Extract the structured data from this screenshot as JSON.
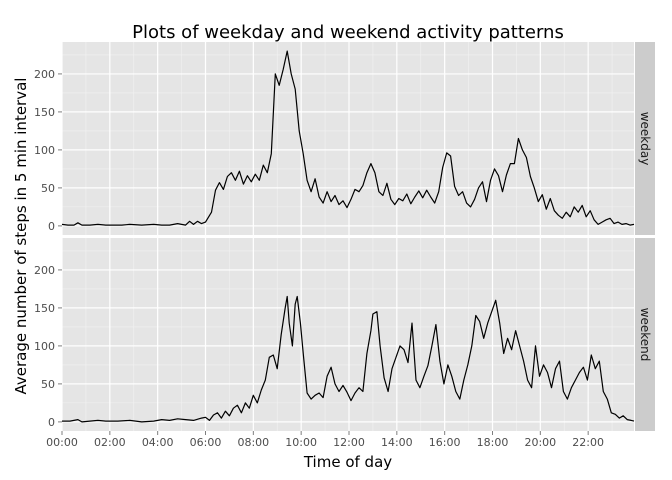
{
  "chart_data": {
    "type": "line",
    "title": "Plots of weekday and weekend activity patterns",
    "xlabel": "Time of day",
    "ylabel": "Average number of steps in 5 min interval",
    "x_unit": "minutes since midnight",
    "xlim": [
      0,
      1435
    ],
    "ylim": [
      -12,
      242
    ],
    "x_ticks": [
      0,
      120,
      240,
      360,
      480,
      600,
      720,
      840,
      960,
      1080,
      1200,
      1320
    ],
    "x_tick_labels": [
      "00:00",
      "02:00",
      "04:00",
      "06:00",
      "08:00",
      "10:00",
      "12:00",
      "14:00",
      "16:00",
      "18:00",
      "20:00",
      "22:00"
    ],
    "y_ticks": [
      0,
      50,
      100,
      150,
      200
    ],
    "y_tick_labels": [
      "0",
      "50",
      "100",
      "150",
      "200"
    ],
    "grid": true,
    "line_color": "#000000",
    "panel_background": "#e5e5e5",
    "strip_background": "#cccccc",
    "facets": [
      {
        "name": "weekday",
        "points": [
          [
            0,
            2
          ],
          [
            15,
            1
          ],
          [
            30,
            1
          ],
          [
            40,
            4
          ],
          [
            50,
            1
          ],
          [
            70,
            1
          ],
          [
            90,
            2
          ],
          [
            110,
            1
          ],
          [
            130,
            1
          ],
          [
            150,
            1
          ],
          [
            170,
            2
          ],
          [
            200,
            1
          ],
          [
            230,
            2
          ],
          [
            250,
            1
          ],
          [
            270,
            1
          ],
          [
            290,
            3
          ],
          [
            310,
            1
          ],
          [
            320,
            6
          ],
          [
            330,
            2
          ],
          [
            340,
            6
          ],
          [
            350,
            3
          ],
          [
            360,
            5
          ],
          [
            375,
            18
          ],
          [
            385,
            47
          ],
          [
            395,
            57
          ],
          [
            405,
            48
          ],
          [
            415,
            65
          ],
          [
            425,
            70
          ],
          [
            435,
            60
          ],
          [
            445,
            72
          ],
          [
            455,
            55
          ],
          [
            465,
            66
          ],
          [
            475,
            58
          ],
          [
            485,
            68
          ],
          [
            495,
            60
          ],
          [
            505,
            80
          ],
          [
            515,
            70
          ],
          [
            525,
            95
          ],
          [
            535,
            200
          ],
          [
            545,
            185
          ],
          [
            555,
            206
          ],
          [
            565,
            230
          ],
          [
            575,
            200
          ],
          [
            585,
            180
          ],
          [
            595,
            125
          ],
          [
            605,
            95
          ],
          [
            615,
            60
          ],
          [
            625,
            45
          ],
          [
            635,
            62
          ],
          [
            645,
            38
          ],
          [
            655,
            30
          ],
          [
            665,
            45
          ],
          [
            675,
            32
          ],
          [
            685,
            40
          ],
          [
            695,
            28
          ],
          [
            705,
            33
          ],
          [
            715,
            24
          ],
          [
            725,
            35
          ],
          [
            735,
            48
          ],
          [
            745,
            45
          ],
          [
            755,
            53
          ],
          [
            765,
            70
          ],
          [
            775,
            82
          ],
          [
            785,
            70
          ],
          [
            795,
            45
          ],
          [
            805,
            40
          ],
          [
            815,
            56
          ],
          [
            825,
            35
          ],
          [
            835,
            28
          ],
          [
            845,
            36
          ],
          [
            855,
            33
          ],
          [
            865,
            42
          ],
          [
            875,
            29
          ],
          [
            885,
            38
          ],
          [
            895,
            46
          ],
          [
            905,
            37
          ],
          [
            915,
            47
          ],
          [
            925,
            38
          ],
          [
            935,
            30
          ],
          [
            945,
            45
          ],
          [
            955,
            77
          ],
          [
            965,
            96
          ],
          [
            975,
            92
          ],
          [
            985,
            52
          ],
          [
            995,
            40
          ],
          [
            1005,
            45
          ],
          [
            1015,
            30
          ],
          [
            1025,
            25
          ],
          [
            1035,
            35
          ],
          [
            1045,
            50
          ],
          [
            1055,
            58
          ],
          [
            1065,
            32
          ],
          [
            1075,
            60
          ],
          [
            1085,
            75
          ],
          [
            1095,
            66
          ],
          [
            1105,
            45
          ],
          [
            1115,
            67
          ],
          [
            1125,
            82
          ],
          [
            1135,
            82
          ],
          [
            1145,
            115
          ],
          [
            1155,
            100
          ],
          [
            1165,
            90
          ],
          [
            1175,
            65
          ],
          [
            1185,
            50
          ],
          [
            1195,
            32
          ],
          [
            1205,
            41
          ],
          [
            1215,
            22
          ],
          [
            1225,
            36
          ],
          [
            1235,
            20
          ],
          [
            1245,
            14
          ],
          [
            1255,
            10
          ],
          [
            1265,
            18
          ],
          [
            1275,
            12
          ],
          [
            1285,
            25
          ],
          [
            1295,
            18
          ],
          [
            1305,
            27
          ],
          [
            1315,
            12
          ],
          [
            1325,
            20
          ],
          [
            1335,
            8
          ],
          [
            1345,
            2
          ],
          [
            1355,
            5
          ],
          [
            1365,
            8
          ],
          [
            1375,
            10
          ],
          [
            1385,
            3
          ],
          [
            1395,
            5
          ],
          [
            1405,
            2
          ],
          [
            1415,
            3
          ],
          [
            1425,
            1
          ],
          [
            1435,
            2
          ]
        ]
      },
      {
        "name": "weekend",
        "points": [
          [
            0,
            1
          ],
          [
            20,
            1
          ],
          [
            40,
            3
          ],
          [
            50,
            0
          ],
          [
            70,
            1
          ],
          [
            90,
            2
          ],
          [
            110,
            1
          ],
          [
            140,
            1
          ],
          [
            170,
            2
          ],
          [
            200,
            0
          ],
          [
            230,
            1
          ],
          [
            250,
            3
          ],
          [
            270,
            2
          ],
          [
            290,
            4
          ],
          [
            310,
            3
          ],
          [
            330,
            2
          ],
          [
            350,
            5
          ],
          [
            360,
            6
          ],
          [
            370,
            2
          ],
          [
            380,
            9
          ],
          [
            390,
            12
          ],
          [
            400,
            5
          ],
          [
            410,
            14
          ],
          [
            420,
            8
          ],
          [
            430,
            18
          ],
          [
            440,
            22
          ],
          [
            450,
            12
          ],
          [
            460,
            25
          ],
          [
            470,
            18
          ],
          [
            480,
            35
          ],
          [
            490,
            25
          ],
          [
            500,
            42
          ],
          [
            510,
            55
          ],
          [
            520,
            85
          ],
          [
            530,
            88
          ],
          [
            540,
            70
          ],
          [
            550,
            115
          ],
          [
            560,
            150
          ],
          [
            565,
            165
          ],
          [
            570,
            130
          ],
          [
            578,
            100
          ],
          [
            585,
            155
          ],
          [
            590,
            165
          ],
          [
            598,
            130
          ],
          [
            606,
            85
          ],
          [
            615,
            38
          ],
          [
            625,
            30
          ],
          [
            635,
            35
          ],
          [
            645,
            38
          ],
          [
            655,
            32
          ],
          [
            665,
            60
          ],
          [
            675,
            72
          ],
          [
            685,
            50
          ],
          [
            695,
            40
          ],
          [
            705,
            48
          ],
          [
            715,
            39
          ],
          [
            725,
            28
          ],
          [
            735,
            38
          ],
          [
            745,
            45
          ],
          [
            755,
            40
          ],
          [
            765,
            90
          ],
          [
            775,
            120
          ],
          [
            780,
            142
          ],
          [
            790,
            145
          ],
          [
            798,
            100
          ],
          [
            808,
            58
          ],
          [
            818,
            40
          ],
          [
            828,
            70
          ],
          [
            838,
            85
          ],
          [
            848,
            100
          ],
          [
            858,
            95
          ],
          [
            868,
            78
          ],
          [
            878,
            130
          ],
          [
            888,
            55
          ],
          [
            898,
            45
          ],
          [
            908,
            60
          ],
          [
            918,
            74
          ],
          [
            928,
            100
          ],
          [
            938,
            128
          ],
          [
            948,
            80
          ],
          [
            958,
            50
          ],
          [
            968,
            75
          ],
          [
            978,
            60
          ],
          [
            988,
            40
          ],
          [
            998,
            30
          ],
          [
            1008,
            55
          ],
          [
            1018,
            75
          ],
          [
            1028,
            100
          ],
          [
            1038,
            140
          ],
          [
            1048,
            132
          ],
          [
            1058,
            110
          ],
          [
            1068,
            130
          ],
          [
            1078,
            145
          ],
          [
            1088,
            160
          ],
          [
            1098,
            130
          ],
          [
            1108,
            90
          ],
          [
            1118,
            110
          ],
          [
            1128,
            95
          ],
          [
            1138,
            120
          ],
          [
            1148,
            100
          ],
          [
            1158,
            80
          ],
          [
            1168,
            55
          ],
          [
            1178,
            45
          ],
          [
            1188,
            100
          ],
          [
            1198,
            60
          ],
          [
            1208,
            75
          ],
          [
            1218,
            65
          ],
          [
            1228,
            45
          ],
          [
            1238,
            70
          ],
          [
            1248,
            80
          ],
          [
            1258,
            40
          ],
          [
            1268,
            30
          ],
          [
            1278,
            45
          ],
          [
            1288,
            55
          ],
          [
            1298,
            65
          ],
          [
            1308,
            72
          ],
          [
            1318,
            55
          ],
          [
            1328,
            88
          ],
          [
            1338,
            70
          ],
          [
            1348,
            80
          ],
          [
            1358,
            40
          ],
          [
            1368,
            30
          ],
          [
            1378,
            12
          ],
          [
            1388,
            10
          ],
          [
            1398,
            5
          ],
          [
            1408,
            8
          ],
          [
            1418,
            3
          ],
          [
            1428,
            2
          ],
          [
            1435,
            1
          ]
        ]
      }
    ]
  }
}
